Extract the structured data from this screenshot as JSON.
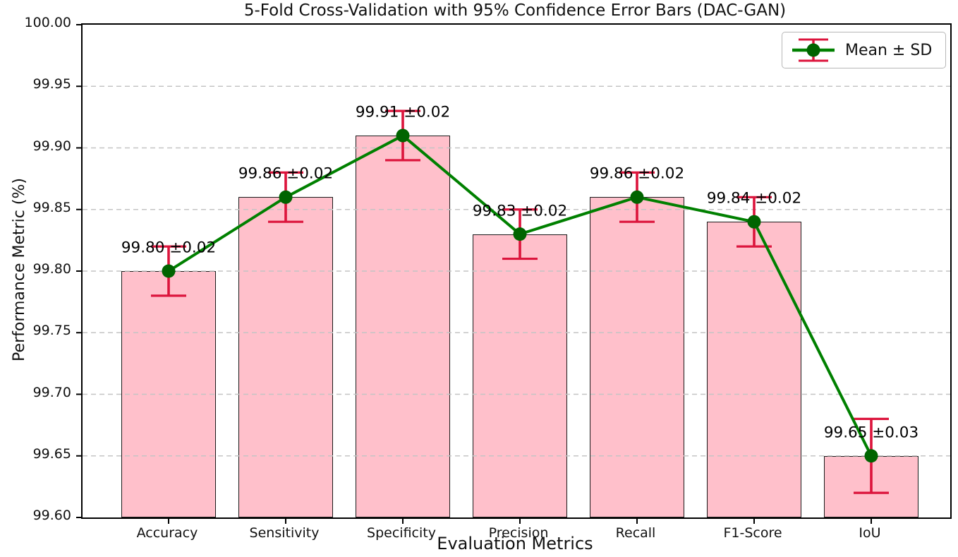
{
  "chart_data": {
    "type": "bar",
    "title": "5-Fold Cross-Validation with 95% Confidence Error Bars (DAC-GAN)",
    "xlabel": "Evaluation Metrics",
    "ylabel": "Performance Metric (%)",
    "categories": [
      "Accuracy",
      "Sensitivity",
      "Specificity",
      "Precision",
      "Recall",
      "F1-Score",
      "IoU"
    ],
    "values": [
      99.8,
      99.86,
      99.91,
      99.83,
      99.86,
      99.84,
      99.65
    ],
    "errors": [
      0.02,
      0.02,
      0.02,
      0.02,
      0.02,
      0.02,
      0.03
    ],
    "bar_labels": [
      "99.80 ±0.02",
      "99.86 ±0.02",
      "99.91 ±0.02",
      "99.83 ±0.02",
      "99.86 ±0.02",
      "99.84 ±0.02",
      "99.65 ±0.03"
    ],
    "ylim": [
      99.6,
      100.0
    ],
    "ytick_step": 0.05,
    "yticks": [
      "100.00",
      "99.95",
      "99.90",
      "99.85",
      "99.80",
      "99.75",
      "99.70",
      "99.65",
      "99.60"
    ],
    "legend": {
      "label": "Mean ± SD",
      "position": "upper right"
    },
    "grid": "horizontal-dashed",
    "colors": {
      "bar_fill": "#FFC0CB",
      "bar_edge": "#1a1a1a",
      "line": "#008000",
      "marker": "#006400",
      "error": "#DC143C",
      "grid": "#c4c4c4",
      "axis": "#000000"
    }
  }
}
